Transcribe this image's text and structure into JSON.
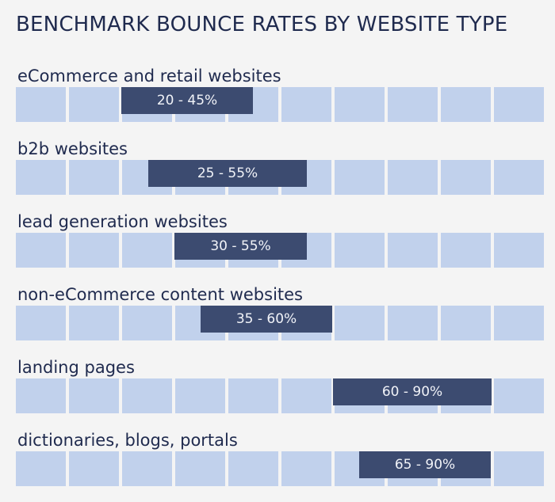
{
  "chart_data": {
    "type": "bar",
    "title": "BENCHMARK BOUNCE RATES BY WEBSITE TYPE",
    "xlim": [
      0,
      100
    ],
    "grid_cells": 10,
    "categories": [
      "eCommerce and retail websites",
      "b2b websites",
      "lead generation websites",
      "non-eCommerce content websites",
      "landing pages",
      "dictionaries, blogs, portals"
    ],
    "ranges": [
      {
        "low": 20,
        "high": 45,
        "label": "20 - 45%"
      },
      {
        "low": 25,
        "high": 55,
        "label": "25 - 55%"
      },
      {
        "low": 30,
        "high": 55,
        "label": "30 - 55%"
      },
      {
        "low": 35,
        "high": 60,
        "label": "35 - 60%"
      },
      {
        "low": 60,
        "high": 90,
        "label": "60 - 90%"
      },
      {
        "low": 65,
        "high": 90,
        "label": "65 - 90%"
      }
    ],
    "colors": {
      "range": "#3c4b70",
      "cell": "#c1d1ec",
      "text": "#1f2a4e"
    }
  }
}
